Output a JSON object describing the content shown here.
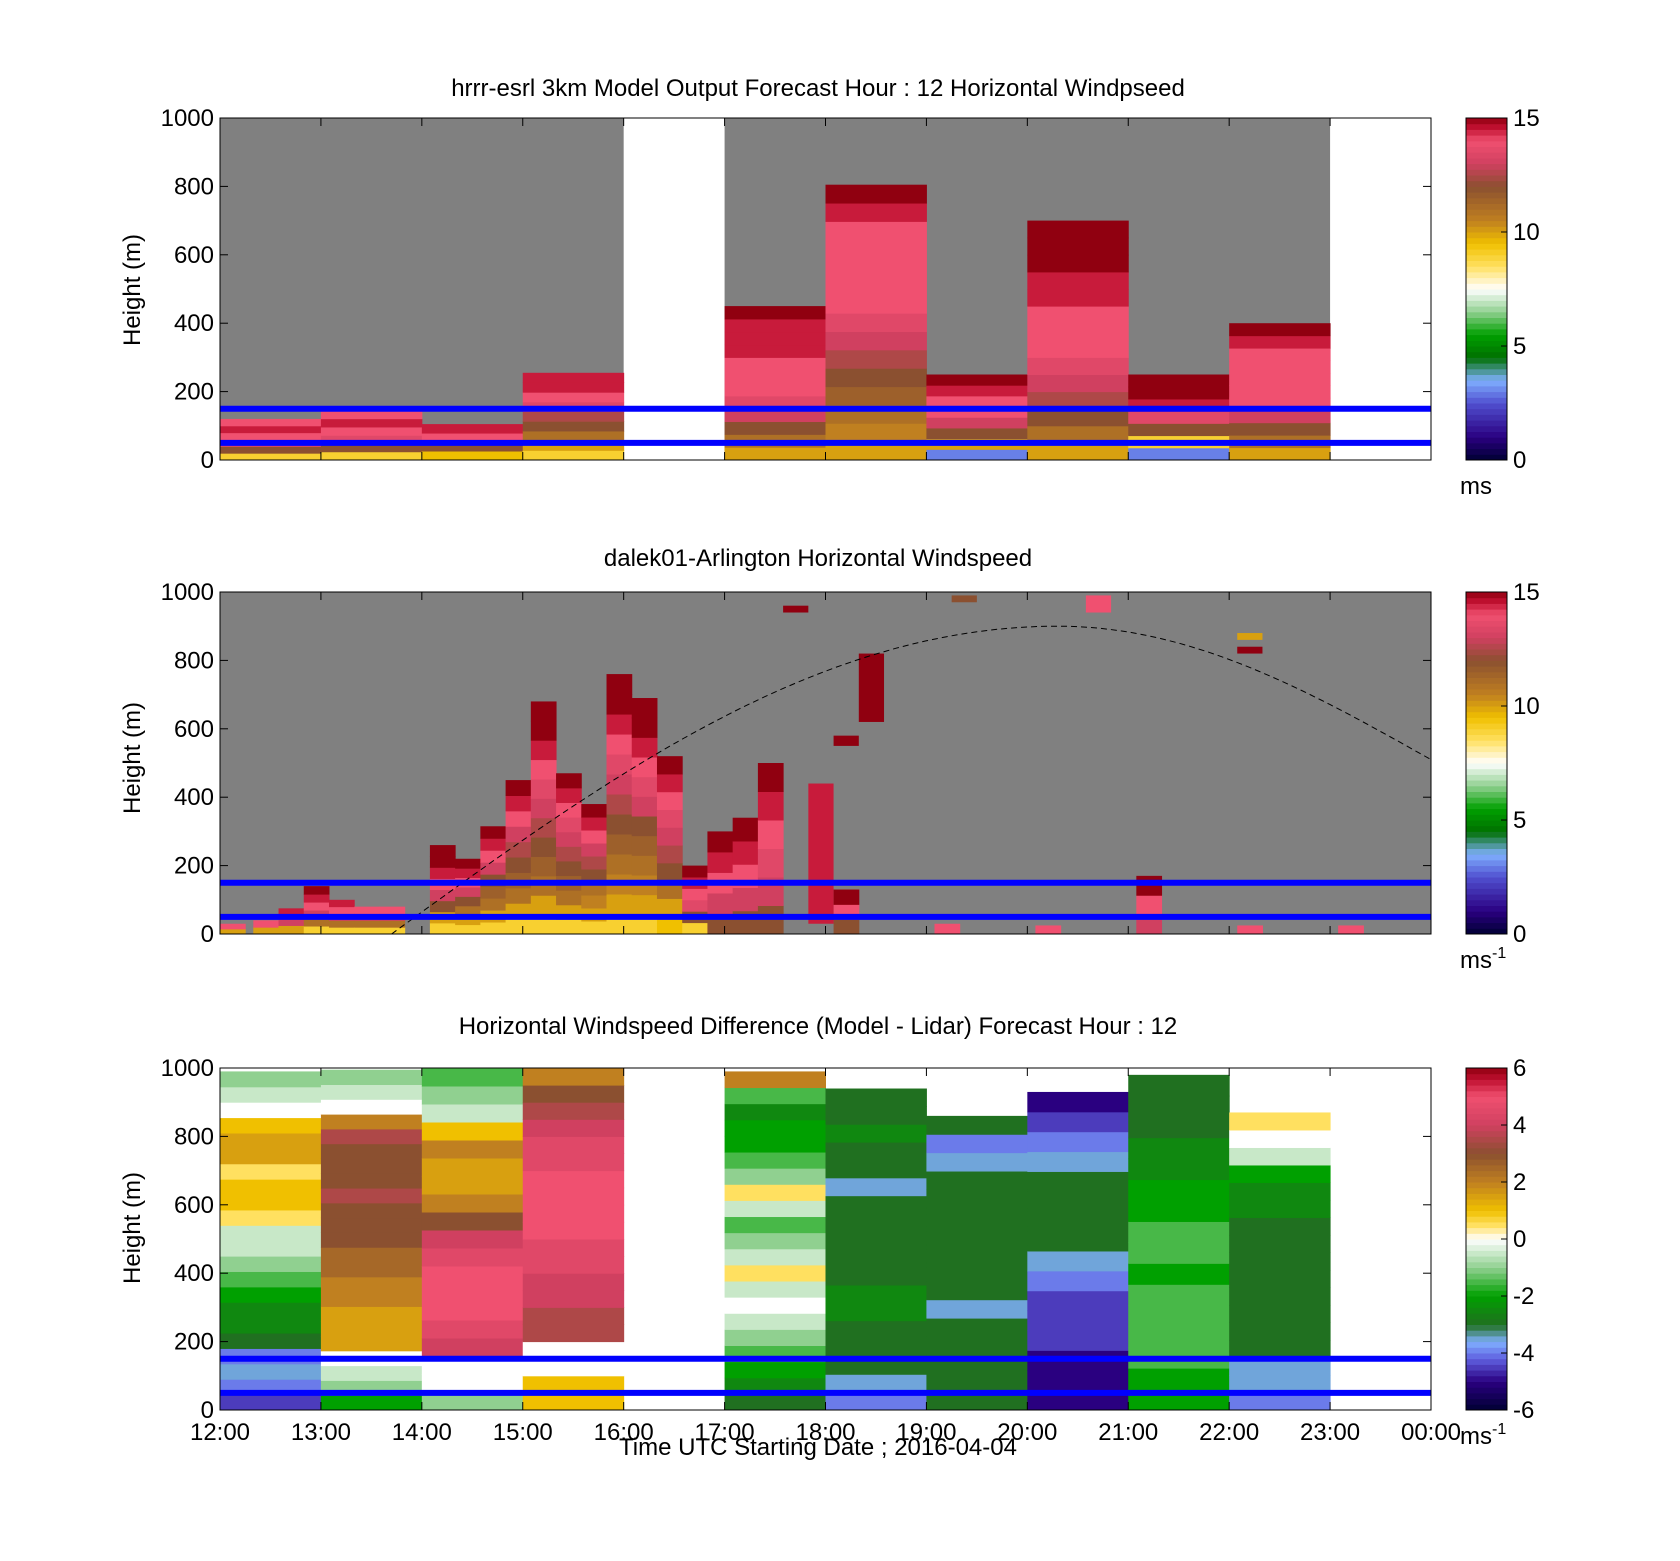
{
  "figure": {
    "xlabel": "Time UTC  Starting Date ; 2016-04-04",
    "x_tick_labels": [
      "12:00",
      "13:00",
      "14:00",
      "15:00",
      "16:00",
      "17:00",
      "18:00",
      "19:00",
      "20:00",
      "21:00",
      "22:00",
      "23:00",
      "00:00"
    ],
    "line_color": "#0000ff",
    "reference_lines_m": [
      50,
      150
    ]
  },
  "chart_data": [
    {
      "type": "heatmap",
      "name": "model",
      "title": "hrrr-esrl 3km Model Output   Forecast Hour : 12 Horizontal Windpseed",
      "ylabel": "Height (m)",
      "ylim": [
        0,
        1000
      ],
      "y_ticks": [
        0,
        200,
        400,
        600,
        800,
        1000
      ],
      "xlim_hours": [
        12,
        24
      ],
      "colorbar": {
        "min": 0,
        "max": 15,
        "ticks": [
          0,
          5,
          10,
          15
        ],
        "unit": "ms",
        "unit_sup": ""
      },
      "background_color": "#808080",
      "missing_hours": [
        [
          16,
          17
        ],
        [
          23,
          24
        ]
      ],
      "columns": [
        {
          "t": 12,
          "top": 120,
          "speeds": [
            9,
            12,
            13.5,
            14,
            14.5,
            14
          ]
        },
        {
          "t": 13,
          "top": 145,
          "speeds": [
            9,
            12,
            13.5,
            14,
            14.5,
            14
          ]
        },
        {
          "t": 14,
          "top": 105,
          "speeds": [
            9.5,
            12,
            14,
            14.5
          ]
        },
        {
          "t": 15,
          "top": 255,
          "speeds": [
            9,
            10,
            11,
            12,
            12.5,
            13.5,
            14,
            14.5,
            14.5
          ]
        },
        {
          "t": 17,
          "top": 450,
          "speeds": [
            10,
            11,
            12,
            13,
            13.5,
            14,
            14,
            14,
            14.5,
            14.5,
            14.5,
            15
          ]
        },
        {
          "t": 18,
          "top": 805,
          "speeds": [
            10,
            10.5,
            11,
            11.5,
            12,
            12.5,
            13,
            13.5,
            14,
            14,
            14,
            14,
            14,
            14.5,
            15
          ]
        },
        {
          "t": 19,
          "top": 250,
          "speeds": [
            3,
            10,
            12,
            13,
            14,
            14,
            14.5,
            15
          ]
        },
        {
          "t": 20,
          "top": 700,
          "speeds": [
            10,
            11,
            12,
            12.5,
            13,
            13.5,
            14,
            14,
            14,
            14.5,
            14.5,
            15,
            15,
            15
          ]
        },
        {
          "t": 21,
          "top": 250,
          "speeds": [
            3,
            9,
            12,
            13.5,
            14.5,
            15,
            15
          ]
        },
        {
          "t": 22,
          "top": 400,
          "speeds": [
            10,
            11,
            12,
            13,
            14,
            14,
            14,
            14,
            14,
            14.5,
            15
          ]
        }
      ]
    },
    {
      "type": "heatmap",
      "name": "lidar",
      "title": "dalek01-Arlington  Horizontal Windspeed",
      "ylabel": "Height (m)",
      "ylim": [
        0,
        1000
      ],
      "y_ticks": [
        0,
        200,
        400,
        600,
        800,
        1000
      ],
      "xlim_hours": [
        12,
        24
      ],
      "colorbar": {
        "min": 0,
        "max": 15,
        "ticks": [
          0,
          5,
          10,
          15
        ],
        "unit": "ms",
        "unit_sup": "-1"
      },
      "background_color": "#808080",
      "solar_curve": {
        "t0": 13.7,
        "t_peak": 20.3,
        "peak_m": 900,
        "t_end": 24,
        "end_m": 510
      },
      "columns": [
        {
          "t": 12.0,
          "top": 30,
          "speeds": [
            10,
            14
          ]
        },
        {
          "t": 12.33,
          "top": 40,
          "speeds": [
            10,
            14
          ]
        },
        {
          "t": 12.58,
          "top": 75,
          "speeds": [
            10,
            13,
            14.5
          ]
        },
        {
          "t": 12.83,
          "top": 140,
          "speeds": [
            9,
            11,
            13,
            14,
            14.5,
            15
          ]
        },
        {
          "t": 13.08,
          "top": 100,
          "speeds": [
            9,
            11,
            13,
            14,
            14.5
          ]
        },
        {
          "t": 13.33,
          "top": 80,
          "speeds": [
            9,
            11,
            13,
            14
          ]
        },
        {
          "t": 13.58,
          "top": 80,
          "speeds": [
            9,
            11,
            13,
            14
          ]
        },
        {
          "t": 14.08,
          "top": 260,
          "speeds": [
            9,
            10,
            12,
            13,
            14,
            14.5,
            15,
            15
          ]
        },
        {
          "t": 14.33,
          "top": 220,
          "speeds": [
            9,
            10,
            11,
            12,
            13,
            14,
            14.5,
            15
          ]
        },
        {
          "t": 14.58,
          "top": 315,
          "speeds": [
            9,
            10,
            11,
            11.5,
            12,
            13,
            14,
            14.5,
            15
          ]
        },
        {
          "t": 14.83,
          "top": 450,
          "speeds": [
            9,
            10,
            11,
            11.5,
            12,
            12.5,
            13,
            14,
            14.5,
            15
          ]
        },
        {
          "t": 15.08,
          "top": 680,
          "speeds": [
            9,
            10,
            11,
            11.5,
            12,
            12.5,
            13,
            13.5,
            14,
            14.5,
            15,
            15
          ]
        },
        {
          "t": 15.33,
          "top": 470,
          "speeds": [
            9,
            10,
            11,
            11.5,
            12,
            12.5,
            13,
            13.5,
            14,
            14.5,
            15
          ]
        },
        {
          "t": 15.58,
          "top": 380,
          "speeds": [
            9,
            10,
            10.5,
            11,
            12,
            12.5,
            13,
            14,
            14.5,
            15
          ]
        },
        {
          "t": 15.83,
          "top": 760,
          "speeds": [
            9,
            10,
            10.5,
            11,
            11.5,
            12,
            12.5,
            13,
            13.5,
            14,
            14.5,
            15,
            15
          ]
        },
        {
          "t": 16.08,
          "top": 690,
          "speeds": [
            9,
            10,
            10.5,
            11,
            11.5,
            12,
            13,
            13.5,
            14,
            14.5,
            15,
            15
          ]
        },
        {
          "t": 16.33,
          "top": 520,
          "speeds": [
            9.5,
            10,
            11,
            12,
            12.5,
            13,
            13.5,
            14,
            14.5,
            15
          ]
        },
        {
          "t": 16.58,
          "top": 200,
          "speeds": [
            9,
            12,
            13.5,
            14,
            14.5,
            15
          ]
        },
        {
          "t": 16.83,
          "top": 300,
          "speeds": [
            12,
            13,
            14,
            14.5,
            15
          ]
        },
        {
          "t": 17.08,
          "top": 340,
          "speeds": [
            12,
            13,
            14,
            14.5,
            15
          ]
        },
        {
          "t": 17.33,
          "top": 500,
          "speeds": [
            12,
            13,
            13.5,
            14,
            14.5,
            15
          ]
        },
        {
          "t": 18.08,
          "top": 130,
          "speeds": [
            12,
            14,
            15
          ]
        },
        {
          "t": 19.08,
          "top": 30,
          "speeds": [
            14
          ]
        },
        {
          "t": 20.08,
          "top": 25,
          "speeds": [
            14
          ]
        },
        {
          "t": 21.08,
          "top": 170,
          "speeds": [
            13,
            14,
            15
          ]
        },
        {
          "t": 22.08,
          "top": 25,
          "speeds": [
            14
          ]
        },
        {
          "t": 23.08,
          "top": 25,
          "speeds": [
            14
          ]
        }
      ],
      "isolated": [
        {
          "t": 17.83,
          "y0": 30,
          "y1": 440,
          "v": 14.5
        },
        {
          "t": 18.08,
          "y0": 550,
          "y1": 580,
          "v": 15
        },
        {
          "t": 18.33,
          "y0": 620,
          "y1": 820,
          "v": 15
        },
        {
          "t": 19.25,
          "y0": 970,
          "y1": 990,
          "v": 12
        },
        {
          "t": 20.58,
          "y0": 940,
          "y1": 990,
          "v": 14
        },
        {
          "t": 17.58,
          "y0": 940,
          "y1": 960,
          "v": 15
        },
        {
          "t": 22.08,
          "y0": 860,
          "y1": 880,
          "v": 10
        },
        {
          "t": 22.08,
          "y0": 820,
          "y1": 840,
          "v": 15
        }
      ]
    },
    {
      "type": "heatmap",
      "name": "difference",
      "title": "Horizontal Windspeed Difference (Model - Lidar) Forecast Hour : 12",
      "ylabel": "Height (m)",
      "ylim": [
        0,
        1000
      ],
      "y_ticks": [
        0,
        200,
        400,
        600,
        800,
        1000
      ],
      "xlim_hours": [
        12,
        24
      ],
      "colorbar": {
        "min": -6,
        "max": 6,
        "ticks": [
          -6,
          -4,
          -2,
          0,
          2,
          4,
          6
        ],
        "unit": "ms",
        "unit_sup": "-1"
      },
      "background_color": "#ffffff",
      "columns": [
        {
          "t": 12,
          "top": 990,
          "diffs": [
            -4.5,
            -4,
            -3.5,
            -4,
            -3,
            -2.5,
            -2.5,
            -2,
            -1.5,
            -1,
            -0.5,
            -0.5,
            0.5,
            1,
            1,
            0.5,
            1.5,
            1.5,
            1,
            0,
            -0.5,
            -1
          ]
        },
        {
          "t": 13,
          "top": 995,
          "diffs": [
            -2,
            -1,
            -0.5,
            0,
            1.5,
            1.5,
            1.5,
            2,
            2,
            2.5,
            2.5,
            3,
            3,
            3,
            3.5,
            3,
            3,
            3,
            3.5,
            2,
            0,
            -0.5,
            -1
          ]
        },
        {
          "t": 14,
          "top": 1000,
          "diffs": [
            -1,
            0,
            0,
            4,
            4.5,
            5,
            5,
            5,
            4.5,
            4,
            3,
            2,
            1.5,
            1.5,
            2,
            1,
            -0.5,
            -1,
            -1.5
          ]
        },
        {
          "t": 15,
          "top": 1000,
          "diffs": [
            1,
            1,
            0,
            0,
            3.5,
            3.5,
            4,
            4,
            4.5,
            4.5,
            5,
            5,
            5,
            5,
            4.5,
            4.5,
            4,
            3.5,
            3,
            2
          ]
        },
        {
          "t": 17,
          "top": 990,
          "diffs": [
            -3,
            -2.5,
            -2,
            -1.5,
            -1,
            -0.5,
            0,
            -0.5,
            0.5,
            -0.5,
            -1,
            -1.5,
            -0.5,
            0.5,
            -1,
            -1.5,
            -2,
            -2,
            -2.5,
            -1.5,
            2
          ]
        },
        {
          "t": 18,
          "top": 940,
          "diffs": [
            -4,
            -3.5,
            -3,
            -3,
            -3,
            -2.5,
            -2.5,
            -3,
            -3,
            -3,
            -3,
            -3,
            -3.5,
            -3,
            -3,
            -2.5,
            -3,
            -3
          ]
        },
        {
          "t": 19,
          "top": 860,
          "diffs": [
            -3,
            -3,
            -3,
            -3,
            -3,
            -3.5,
            -3,
            -3,
            -3,
            -3,
            -3,
            -3,
            -3,
            -3.5,
            -4,
            -3
          ]
        },
        {
          "t": 20,
          "top": 930,
          "diffs": [
            -5,
            -5,
            -5,
            -4.5,
            -4.5,
            -4.5,
            -4,
            -3.5,
            -3,
            -3,
            -3,
            -3,
            -3.5,
            -4,
            -4.5,
            -5
          ]
        },
        {
          "t": 21,
          "top": 980,
          "diffs": [
            -2,
            -2,
            -1.5,
            -1.5,
            -1.5,
            -1.5,
            -2,
            -1.5,
            -1.5,
            -2,
            -2,
            -2.5,
            -2.5,
            -3,
            -3,
            -3
          ]
        },
        {
          "t": 22,
          "top": 870,
          "diffs": [
            -4,
            -3.5,
            -3.5,
            -3,
            -3,
            -3,
            -3,
            -3,
            -3,
            -3,
            -3,
            -2.5,
            -2.5,
            -2,
            -0.5,
            0,
            0.5
          ]
        }
      ]
    }
  ]
}
